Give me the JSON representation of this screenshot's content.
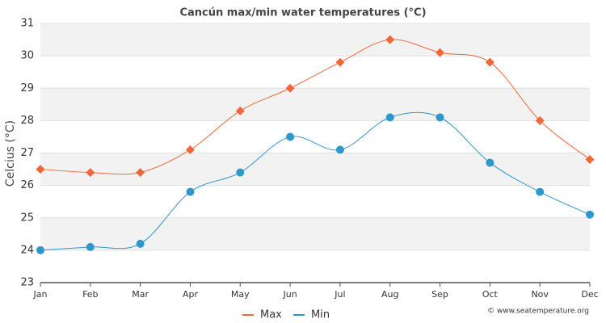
{
  "chart_data": {
    "type": "line",
    "title": "Cancún max/min water temperatures (°C)",
    "y_label": "Celcius (°C)",
    "credit": "© www.seatemperature.org",
    "categories": [
      "Jan",
      "Feb",
      "Mar",
      "Apr",
      "May",
      "Jun",
      "Jul",
      "Aug",
      "Sep",
      "Oct",
      "Nov",
      "Dec"
    ],
    "series": [
      {
        "name": "Max",
        "color": "#f2673a",
        "marker": "diamond",
        "values": [
          26.5,
          26.4,
          26.4,
          27.1,
          28.3,
          29.0,
          29.8,
          30.5,
          30.1,
          29.8,
          28.0,
          26.8
        ]
      },
      {
        "name": "Min",
        "color": "#2e97cc",
        "marker": "circle",
        "values": [
          24.0,
          24.1,
          24.2,
          25.8,
          26.4,
          27.5,
          27.1,
          28.1,
          28.1,
          26.7,
          25.8,
          25.1
        ]
      }
    ],
    "ylim": [
      23,
      31
    ],
    "yticks": [
      23,
      24,
      25,
      26,
      27,
      28,
      29,
      30,
      31
    ],
    "grid": true
  }
}
